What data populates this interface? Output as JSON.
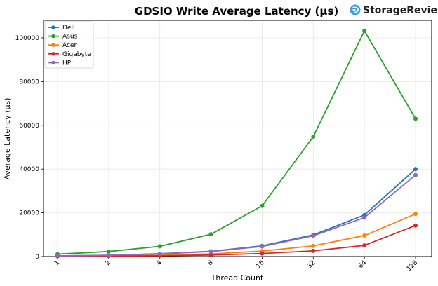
{
  "chart_data": {
    "type": "line",
    "title": "GDSIO Write Average Latency (µs)",
    "xlabel": "Thread Count",
    "ylabel": "Average Latency (µs)",
    "categories": [
      "1",
      "2",
      "4",
      "8",
      "16",
      "32",
      "64",
      "128"
    ],
    "ylim": [
      0,
      108000
    ],
    "yticks": [
      0,
      20000,
      40000,
      60000,
      80000,
      100000
    ],
    "grid": true,
    "legend_position": "top-left",
    "series": [
      {
        "name": "Dell",
        "color": "#1f77b4",
        "values": [
          300,
          600,
          1300,
          2400,
          4900,
          9900,
          19000,
          40000
        ]
      },
      {
        "name": "Asus",
        "color": "#2ca02c",
        "values": [
          1100,
          2300,
          4700,
          10200,
          23200,
          54800,
          103200,
          63000
        ]
      },
      {
        "name": "Acer",
        "color": "#ff7f0e",
        "values": [
          150,
          300,
          600,
          1200,
          2500,
          4900,
          9600,
          19500
        ]
      },
      {
        "name": "Gigabyte",
        "color": "#d62728",
        "values": [
          100,
          200,
          350,
          700,
          1400,
          2600,
          5100,
          14200
        ]
      },
      {
        "name": "HP",
        "color": "#9467bd",
        "values": [
          300,
          600,
          1200,
          2300,
          4600,
          9500,
          17800,
          37300
        ]
      }
    ]
  },
  "brand": {
    "name": "StorageReview",
    "icon": "storagereview-logo-icon",
    "color": "#3aa0e0"
  }
}
